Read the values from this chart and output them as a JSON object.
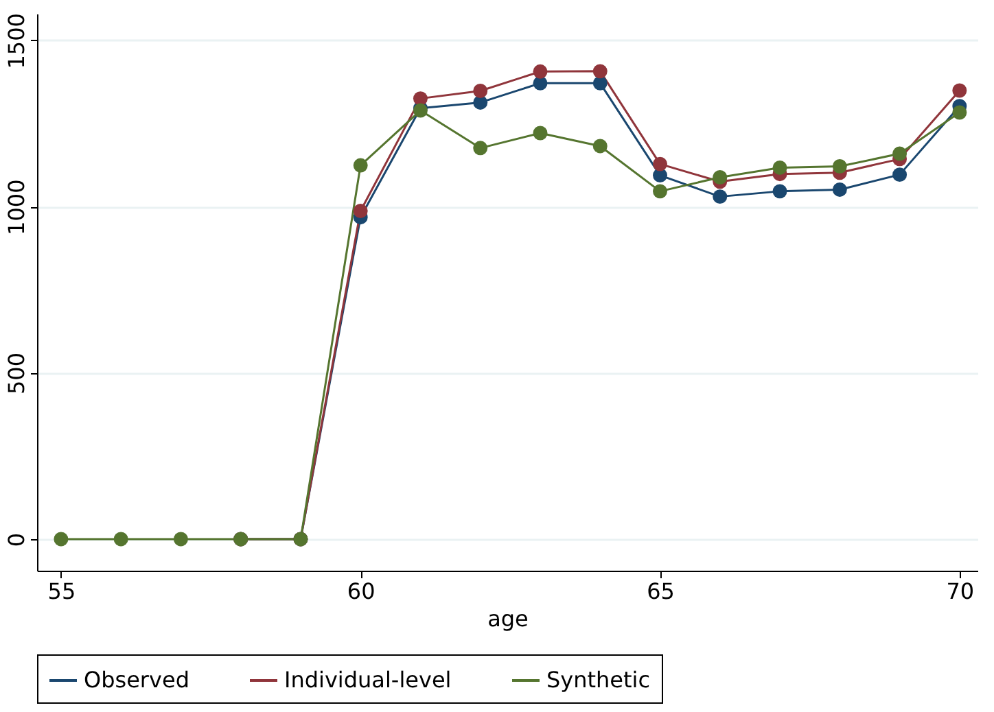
{
  "chart_data": {
    "type": "line",
    "xlabel": "age",
    "x": [
      55,
      56,
      57,
      58,
      59,
      60,
      61,
      62,
      63,
      64,
      65,
      66,
      67,
      68,
      69,
      70
    ],
    "series": [
      {
        "name": "Observed",
        "color": "#1a476f",
        "values": [
          null,
          null,
          null,
          0,
          0,
          968,
          1296,
          1313,
          1371,
          1371,
          1094,
          1030,
          1046,
          1051,
          1096,
          1302
        ]
      },
      {
        "name": "Individual-level",
        "color": "#90353b",
        "values": [
          null,
          null,
          null,
          0,
          0,
          987,
          1325,
          1348,
          1406,
          1407,
          1128,
          1075,
          1098,
          1102,
          1143,
          1349
        ]
      },
      {
        "name": "Synthetic",
        "color": "#55752f",
        "values": [
          0,
          0,
          0,
          0,
          0,
          1124,
          1289,
          1176,
          1221,
          1182,
          1046,
          1088,
          1117,
          1121,
          1159,
          1283
        ]
      }
    ],
    "xlim": [
      54.6,
      70.3
    ],
    "xticks": [
      55,
      60,
      65,
      70
    ],
    "ylim": [
      -95,
      1580
    ],
    "yticks": [
      0,
      500,
      1000,
      1500
    ],
    "grid": "y",
    "legend": "bottom",
    "marker": "circle",
    "line_style": "solid"
  }
}
